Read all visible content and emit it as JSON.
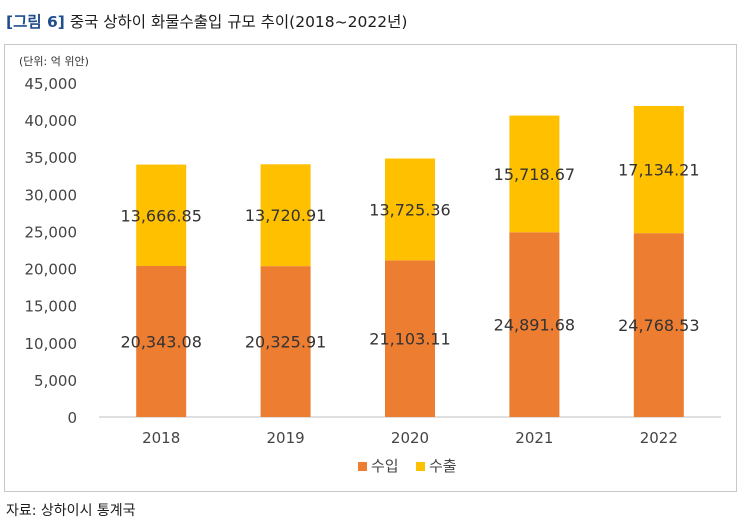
{
  "figure": {
    "tag": "[그림 6]",
    "title": "중국 상하이 화물수출입 규모 추이(2018~2022년)"
  },
  "source": "자료: 상하이시 통계국",
  "colors": {
    "import": "#ED7D31",
    "export": "#FFC000",
    "title_tag": "#1F4E8C"
  },
  "chart_data": {
    "type": "bar",
    "stacked": true,
    "unit_label": "(단위: 억 위안)",
    "categories": [
      "2018",
      "2019",
      "2020",
      "2021",
      "2022"
    ],
    "series": [
      {
        "name": "수입",
        "color": "#ED7D31",
        "values": [
          20343.08,
          20325.91,
          21103.11,
          24891.68,
          24768.53
        ]
      },
      {
        "name": "수출",
        "color": "#FFC000",
        "values": [
          13666.85,
          13720.91,
          13725.36,
          15718.67,
          17134.21
        ]
      }
    ],
    "data_labels": [
      [
        "20,343.08",
        "20,325.91",
        "21,103.11",
        "24,891.68",
        "24,768.53"
      ],
      [
        "13,666.85",
        "13,720.91",
        "13,725.36",
        "15,718.67",
        "17,134.21"
      ]
    ],
    "y_ticks": [
      0,
      5000,
      10000,
      15000,
      20000,
      25000,
      30000,
      35000,
      40000,
      45000
    ],
    "y_tick_labels": [
      "0",
      "5,000",
      "10,000",
      "15,000",
      "20,000",
      "25,000",
      "30,000",
      "35,000",
      "40,000",
      "45,000"
    ],
    "ylim": [
      0,
      45000
    ],
    "grid": false,
    "legend_position": "bottom"
  }
}
